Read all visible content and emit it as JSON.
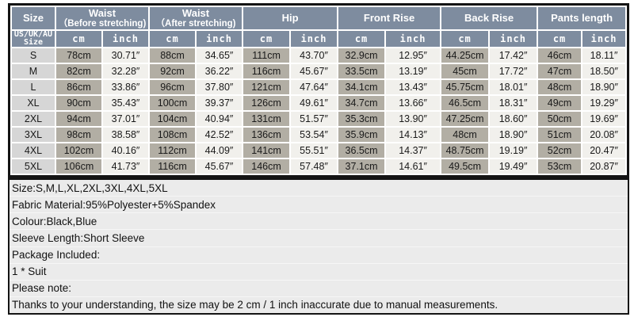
{
  "colors": {
    "header-bg": "#7e8c9f",
    "header-text": "#ffffff",
    "cm-bg": "#b2aea4",
    "inch-bg": "#f1f0ec",
    "size-bg": "#d6d6d6",
    "notes-bg": "#ebebeb",
    "border": "#141414",
    "cell-text": "#1a1a1a"
  },
  "table": {
    "header": {
      "size_label": "Size",
      "size_sub_line1": "US/UK/AU",
      "size_sub_line2": "Size",
      "unit_cm": "cm",
      "unit_inch": "inch",
      "groups": [
        {
          "line1": "Waist",
          "line2": "（Before stretching)"
        },
        {
          "line1": "Waist",
          "line2": "（After stretching)"
        },
        {
          "line1": "Hip",
          "line2": ""
        },
        {
          "line1": "Front Rise",
          "line2": ""
        },
        {
          "line1": "Back Rise",
          "line2": ""
        },
        {
          "line1": "Pants length",
          "line2": ""
        }
      ]
    },
    "rows": [
      {
        "size": "S",
        "cells": [
          "78cm",
          "30.71″",
          "88cm",
          "34.65″",
          "111cm",
          "43.70″",
          "32.9cm",
          "12.95″",
          "44.25cm",
          "17.42″",
          "46cm",
          "18.11″"
        ]
      },
      {
        "size": "M",
        "cells": [
          "82cm",
          "32.28″",
          "92cm",
          "36.22″",
          "116cm",
          "45.67″",
          "33.5cm",
          "13.19″",
          "45cm",
          "17.72″",
          "47cm",
          "18.50″"
        ]
      },
      {
        "size": "L",
        "cells": [
          "86cm",
          "33.86″",
          "96cm",
          "37.80″",
          "121cm",
          "47.64″",
          "34.1cm",
          "13.43″",
          "45.75cm",
          "18.01″",
          "48cm",
          "18.90″"
        ]
      },
      {
        "size": "XL",
        "cells": [
          "90cm",
          "35.43″",
          "100cm",
          "39.37″",
          "126cm",
          "49.61″",
          "34.7cm",
          "13.66″",
          "46.5cm",
          "18.31″",
          "49cm",
          "19.29″"
        ]
      },
      {
        "size": "2XL",
        "cells": [
          "94cm",
          "37.01″",
          "104cm",
          "40.94″",
          "131cm",
          "51.57″",
          "35.3cm",
          "13.90″",
          "47.25cm",
          "18.60″",
          "50cm",
          "19.69″"
        ]
      },
      {
        "size": "3XL",
        "cells": [
          "98cm",
          "38.58″",
          "108cm",
          "42.52″",
          "136cm",
          "53.54″",
          "35.9cm",
          "14.13″",
          "48cm",
          "18.90″",
          "51cm",
          "20.08″"
        ]
      },
      {
        "size": "4XL",
        "cells": [
          "102cm",
          "40.16″",
          "112cm",
          "44.09″",
          "141cm",
          "55.51″",
          "36.5cm",
          "14.37″",
          "48.75cm",
          "19.19″",
          "52cm",
          "20.47″"
        ]
      },
      {
        "size": "5XL",
        "cells": [
          "106cm",
          "41.73″",
          "116cm",
          "45.67″",
          "146cm",
          "57.48″",
          "37.1cm",
          "14.61″",
          "49.5cm",
          "19.49″",
          "53cm",
          "20.87″"
        ]
      }
    ]
  },
  "notes": [
    "Size:S,M,L,XL,2XL,3XL,4XL,5XL",
    "Fabric Material:95%Polyester+5%Spandex",
    "Colour:Black,Blue",
    "Sleeve Length:Short Sleeve",
    "Package Included:",
    "1 * Suit",
    "Please note:",
    "Thanks to your understanding, the size may be 2 cm / 1 inch inaccurate due to manual measurements."
  ]
}
